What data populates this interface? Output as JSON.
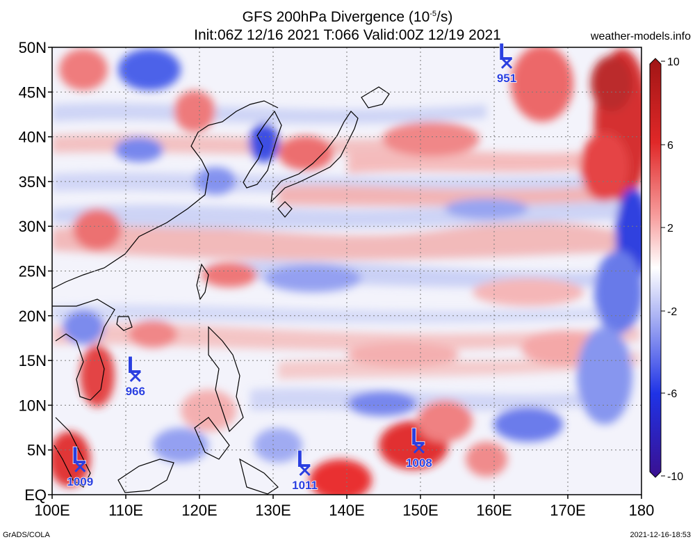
{
  "title": {
    "line1": "GFS 200hPa Divergence (10",
    "exp": "-5",
    "line1_end": "/s)",
    "line2": "Init:06Z 12/16 2021 T:066 Valid:00Z 12/19 2021"
  },
  "site": "weather-models.info",
  "footer": {
    "left": "GrADS/COLA",
    "right": "2021-12-16-18:53"
  },
  "lat_labels": [
    "50N",
    "45N",
    "40N",
    "35N",
    "30N",
    "25N",
    "20N",
    "15N",
    "10N",
    "5N",
    "EQ"
  ],
  "lon_labels": [
    "100E",
    "110E",
    "120E",
    "130E",
    "140E",
    "150E",
    "160E",
    "170E",
    "180"
  ],
  "colorbar": {
    "labels": [
      "10",
      "6",
      "2",
      "-2",
      "-6",
      "-10"
    ],
    "colors": [
      "#b01818",
      "#e63030",
      "#f58a8a",
      "#fbe0e0",
      "#ffffff",
      "#dfe3fb",
      "#8a96ef",
      "#2840e8",
      "#1818c8",
      "#3a1090"
    ]
  },
  "lows": [
    {
      "label": "L",
      "value": "951",
      "lon": 161.7,
      "lat": 48.3
    },
    {
      "label": "L",
      "value": "966",
      "lon": 111.3,
      "lat": 13.3
    },
    {
      "label": "L",
      "value": "1009",
      "lon": 103.8,
      "lat": 3.2
    },
    {
      "label": "L",
      "value": "1011",
      "lon": 134.3,
      "lat": 2.8
    },
    {
      "label": "L",
      "value": "1008",
      "lon": 149.8,
      "lat": 5.3
    }
  ],
  "colors": {
    "low_marker": "#2a3fe0",
    "frame": "#000000",
    "grid": "#7a7a7a"
  }
}
